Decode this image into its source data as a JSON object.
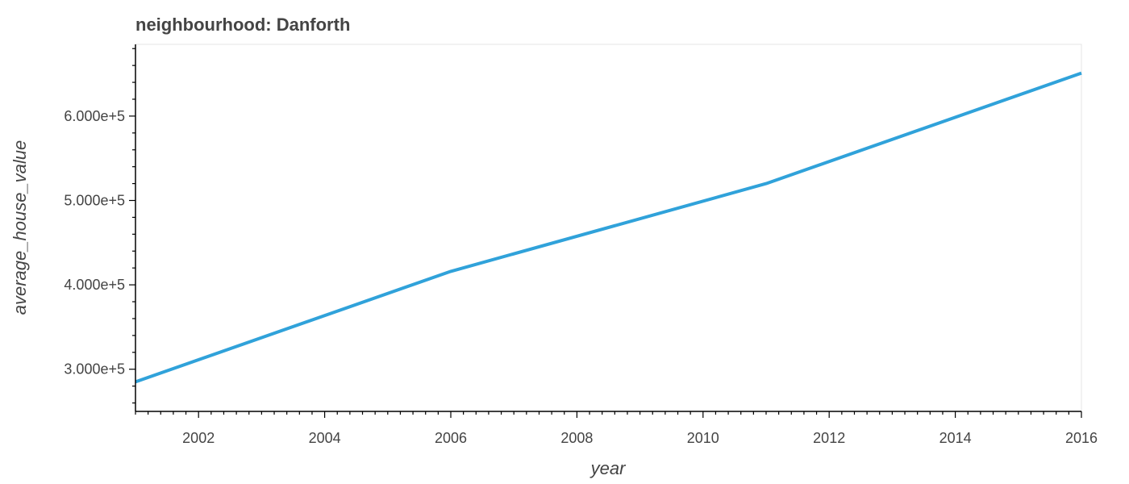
{
  "chart_data": {
    "type": "line",
    "title": "neighbourhood: Danforth",
    "xlabel": "year",
    "ylabel": "average_house_value",
    "xlim": [
      2001,
      2016
    ],
    "ylim": [
      250000,
      685000
    ],
    "x_ticks": [
      2002,
      2004,
      2006,
      2008,
      2010,
      2012,
      2014,
      2016
    ],
    "x_tick_labels": [
      "2002",
      "2004",
      "2006",
      "2008",
      "2010",
      "2012",
      "2014",
      "2016"
    ],
    "y_ticks": [
      300000,
      400000,
      500000,
      600000
    ],
    "y_tick_labels": [
      "3.000e+5",
      "4.000e+5",
      "5.000e+5",
      "6.000e+5"
    ],
    "grid": false,
    "series": [
      {
        "x": [
          2001,
          2006,
          2011,
          2016
        ],
        "values": [
          285000,
          416000,
          520000,
          651000
        ],
        "color": "#30a2da"
      }
    ]
  }
}
